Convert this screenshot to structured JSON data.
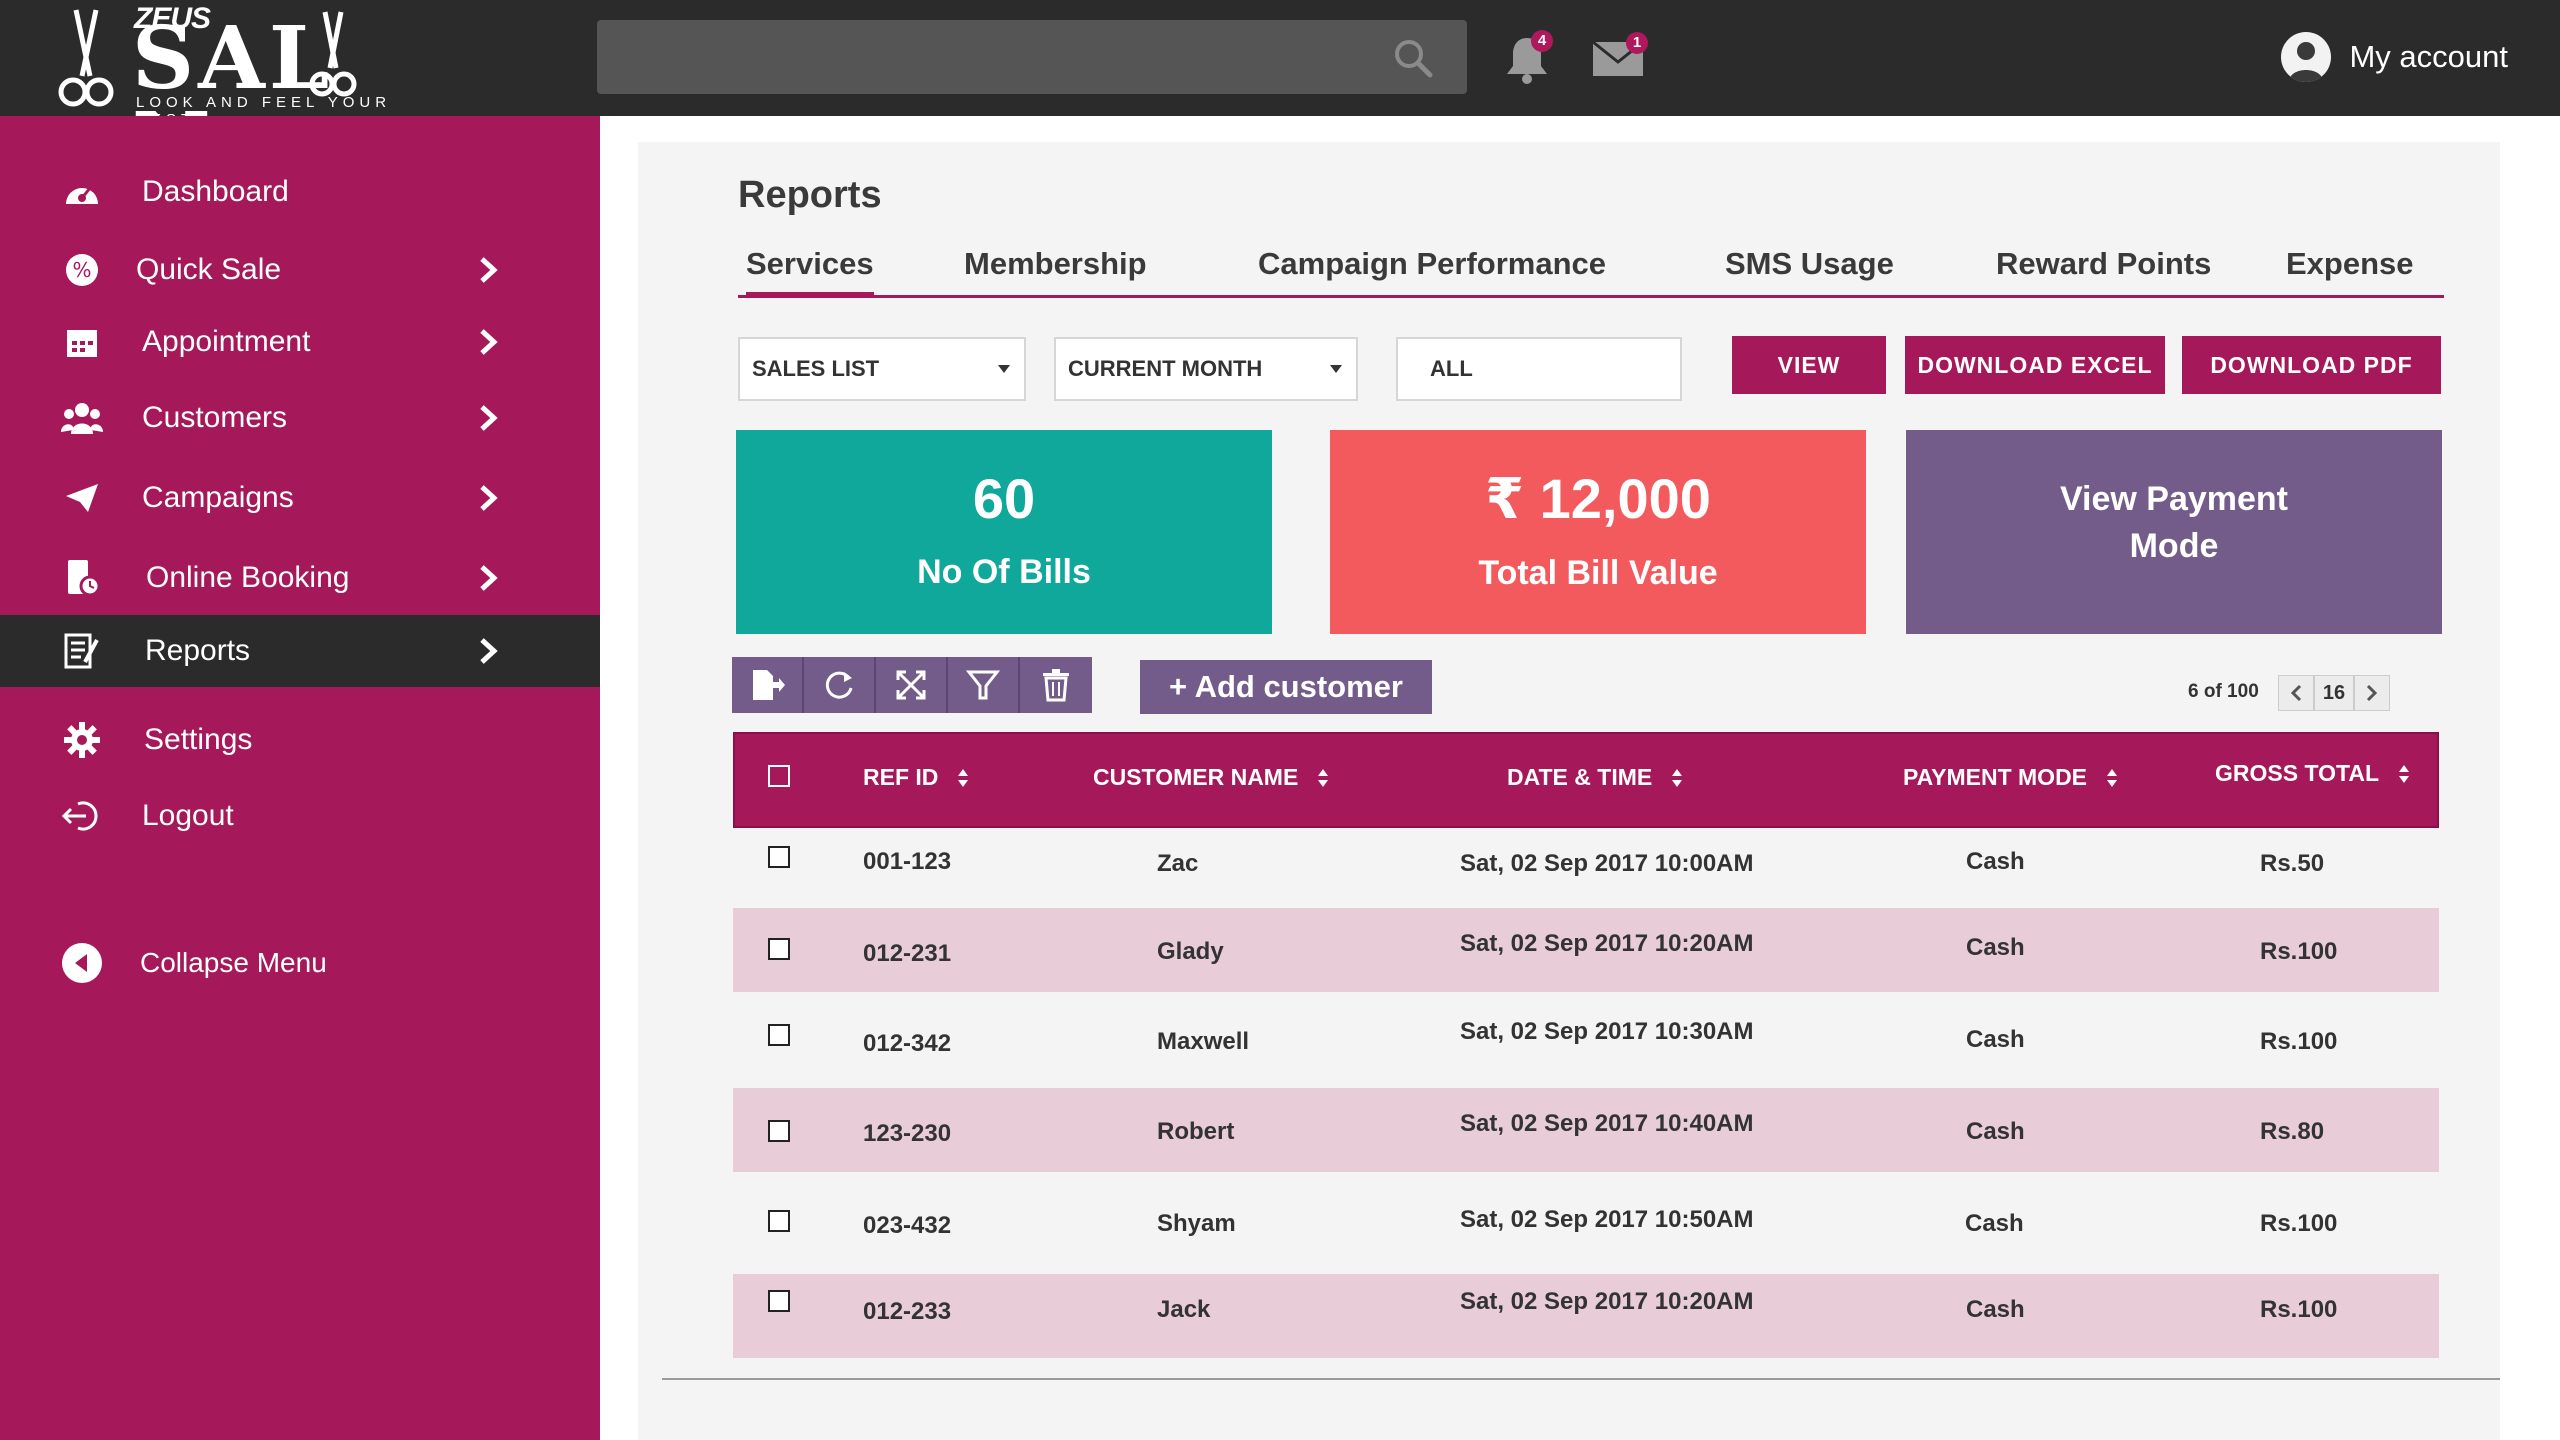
{
  "brand": {
    "top": "ZEUS",
    "name": "SAL  N",
    "tagline": "LOOK AND FEEL YOUR BEST"
  },
  "header": {
    "notifications_count": "4",
    "messages_count": "1",
    "account_label": "My account"
  },
  "sidebar": {
    "items": [
      {
        "label": "Dashboard",
        "icon": "dashboard-icon",
        "has_arrow": false
      },
      {
        "label": "Quick Sale",
        "icon": "quick-sale-icon",
        "has_arrow": true
      },
      {
        "label": "Appointment",
        "icon": "calendar-icon",
        "has_arrow": true
      },
      {
        "label": "Customers",
        "icon": "customers-icon",
        "has_arrow": true
      },
      {
        "label": "Campaigns",
        "icon": "paper-plane-icon",
        "has_arrow": true
      },
      {
        "label": "Online Booking",
        "icon": "online-booking-icon",
        "has_arrow": true
      },
      {
        "label": "Reports",
        "icon": "reports-icon",
        "has_arrow": true,
        "active": true
      },
      {
        "label": "Settings",
        "icon": "gear-icon",
        "has_arrow": false
      },
      {
        "label": "Logout",
        "icon": "logout-icon",
        "has_arrow": false
      }
    ],
    "collapse_label": "Collapse Menu"
  },
  "page": {
    "title": "Reports",
    "tabs": [
      "Services",
      "Membership",
      "Campaign Performance",
      "SMS Usage",
      "Reward Points",
      "Expense"
    ],
    "active_tab": "Services"
  },
  "filters": {
    "list_select": "SALES LIST",
    "period_select": "CURRENT MONTH",
    "scope_field": "ALL",
    "view_label": "VIEW",
    "excel_label": "DOWNLOAD EXCEL",
    "pdf_label": "DOWNLOAD PDF"
  },
  "cards": {
    "bills_value": "60",
    "bills_label": "No Of Bills",
    "total_value": "₹ 12,000",
    "total_label": "Total Bill Value",
    "payment_line1": "View  Payment",
    "payment_line2": "Mode"
  },
  "actions": {
    "add_customer_label": "+ Add customer"
  },
  "pagination": {
    "summary": "6 of 100",
    "page": "16"
  },
  "table": {
    "columns": [
      "REF ID",
      "CUSTOMER NAME",
      "DATE & TIME",
      "PAYMENT MODE",
      "GROSS TOTAL"
    ],
    "rows": [
      {
        "ref": "001-123",
        "name": "Zac",
        "datetime": "Sat, 02 Sep 2017 10:00AM",
        "mode": "Cash",
        "total": "Rs.50"
      },
      {
        "ref": "012-231",
        "name": "Glady",
        "datetime": "Sat, 02 Sep 2017 10:20AM",
        "mode": "Cash",
        "total": "Rs.100"
      },
      {
        "ref": "012-342",
        "name": "Maxwell",
        "datetime": "Sat, 02 Sep 2017 10:30AM",
        "mode": "Cash",
        "total": "Rs.100"
      },
      {
        "ref": "123-230",
        "name": "Robert",
        "datetime": "Sat, 02 Sep 2017 10:40AM",
        "mode": "Cash",
        "total": "Rs.80"
      },
      {
        "ref": "023-432",
        "name": "Shyam",
        "datetime": "Sat, 02 Sep 2017 10:50AM",
        "mode": "Cash",
        "total": "Rs.100"
      },
      {
        "ref": "012-233",
        "name": "Jack",
        "datetime": "Sat, 02 Sep 2017 10:20AM",
        "mode": "Cash",
        "total": "Rs.100"
      }
    ]
  },
  "colors": {
    "brand": "#a5195a",
    "topbar": "#2b2b2b",
    "teal_card": "#10a89a",
    "red_card": "#f25a5e",
    "purple_card": "#735c8a",
    "row_alt": "#e8ccd8"
  }
}
